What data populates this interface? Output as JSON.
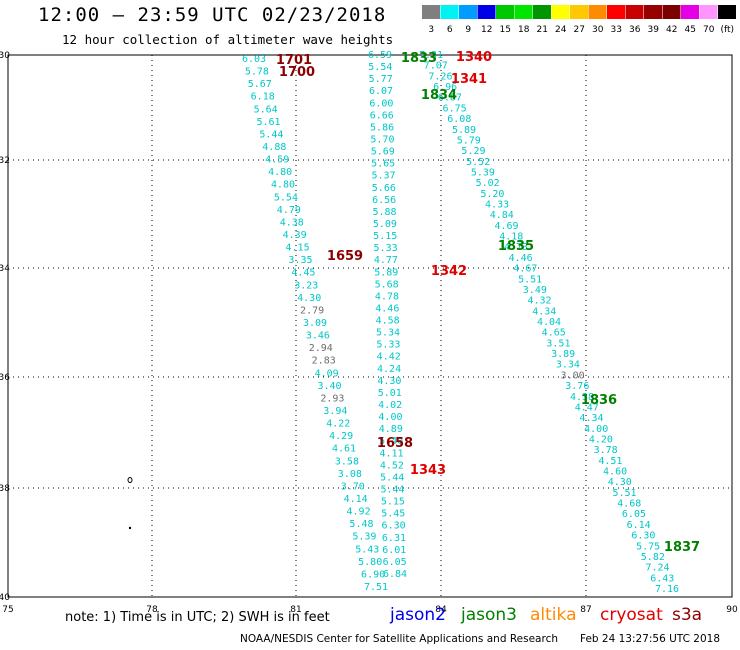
{
  "header": {
    "title": "12:00 — 23:59 UTC 02/23/2018",
    "subtitle": "12 hour collection of altimeter wave heights"
  },
  "colorbar": {
    "labels": [
      "3",
      "6",
      "9",
      "12",
      "15",
      "18",
      "21",
      "24",
      "27",
      "30",
      "33",
      "36",
      "39",
      "42",
      "45",
      "70",
      "(ft)"
    ],
    "colors": [
      "#7f7f7f",
      "#00f2f2",
      "#009cff",
      "#0000e6",
      "#00c800",
      "#00e600",
      "#009600",
      "#ffff00",
      "#ffc800",
      "#ff8c00",
      "#ff0000",
      "#c80000",
      "#960000",
      "#7d0000",
      "#e600e6",
      "#ff96ff",
      "#000000"
    ]
  },
  "axes": {
    "x_ticks": [
      "75",
      "78",
      "81",
      "84",
      "87",
      "90"
    ],
    "y_ticks": [
      "-30",
      "-32",
      "-34",
      "-36",
      "-38",
      "-40"
    ]
  },
  "tracks": [
    {
      "name": "track-a",
      "color": "#00c8c8",
      "values": [
        "6.03",
        "5.78",
        "5.67",
        "6.18",
        "5.64",
        "5.61",
        "5.44",
        "4.88",
        "4.59",
        "4.80",
        "4.80",
        "5.54",
        "4.79",
        "4.38",
        "4.39",
        "4.15",
        "3.35",
        "4.45",
        "3.23",
        "4.30",
        "2.79",
        "3.09",
        "3.46",
        "2.94",
        "2.83",
        "4.09",
        "3.40",
        "2.93",
        "3.94",
        "4.22",
        "4.29",
        "4.61",
        "3.58",
        "3.08",
        "3.70",
        "4.14",
        "4.92",
        "5.48",
        "5.39",
        "5.43",
        "5.80",
        "6.90",
        "7.51"
      ]
    },
    {
      "name": "track-b",
      "color": "#00c8c8",
      "values": [
        "6.59",
        "5.54",
        "5.77",
        "6.07",
        "6.00",
        "6.66",
        "5.86",
        "5.70",
        "5.69",
        "5.65",
        "5.37",
        "5.66",
        "6.56",
        "5.88",
        "5.09",
        "5.15",
        "5.33",
        "4.77",
        "5.89",
        "5.68",
        "4.78",
        "4.46",
        "4.58",
        "5.34",
        "5.33",
        "4.42",
        "4.24",
        "4.30",
        "5.01",
        "4.02",
        "4.00",
        "4.89",
        "5.40",
        "4.11",
        "4.52",
        "5.44",
        "5.44",
        "5.15",
        "5.45",
        "6.30",
        "6.31",
        "6.01",
        "6.05",
        "6.84"
      ]
    },
    {
      "name": "track-c",
      "color": "#00c8c8",
      "values": [
        "7.31",
        "7.07",
        "7.26",
        "6.96",
        "6.87",
        "6.75",
        "6.08",
        "5.89",
        "5.79",
        "5.29",
        "5.52",
        "5.39",
        "5.02",
        "5.20",
        "4.33",
        "4.84",
        "4.69",
        "4.18",
        "4.73",
        "4.46",
        "4.67",
        "5.51",
        "3.49",
        "4.32",
        "4.34",
        "4.04",
        "4.65",
        "3.51",
        "3.89",
        "3.34",
        "3.00",
        "3.76",
        "4.38",
        "4.47",
        "4.34",
        "4.00",
        "4.20",
        "3.78",
        "4.51",
        "4.60",
        "4.30",
        "5.51",
        "4.68",
        "6.05",
        "6.14",
        "6.30",
        "5.75",
        "5.82",
        "7.24",
        "6.43",
        "7.16"
      ]
    }
  ],
  "time_labels": [
    {
      "text": "1701",
      "color": "#8b0000"
    },
    {
      "text": "1700",
      "color": "#8b0000"
    },
    {
      "text": "1659",
      "color": "#8b0000"
    },
    {
      "text": "1658",
      "color": "#8b0000"
    },
    {
      "text": "1833",
      "color": "#008000"
    },
    {
      "text": "1834",
      "color": "#008000"
    },
    {
      "text": "1835",
      "color": "#008000"
    },
    {
      "text": "1836",
      "color": "#008000"
    },
    {
      "text": "1837",
      "color": "#008000"
    },
    {
      "text": "1340",
      "color": "#e00000"
    },
    {
      "text": "1341",
      "color": "#e00000"
    },
    {
      "text": "1342",
      "color": "#e00000"
    },
    {
      "text": "1343",
      "color": "#e00000"
    }
  ],
  "footer": {
    "note": "note:  1) Time is in UTC;  2) SWH is in feet",
    "satellites": [
      {
        "name": "jason2",
        "color": "#0000e6"
      },
      {
        "name": "jason3",
        "color": "#008000"
      },
      {
        "name": "altika",
        "color": "#ff8c00"
      },
      {
        "name": "cryosat",
        "color": "#e00000"
      },
      {
        "name": "s3a",
        "color": "#8b0000"
      }
    ],
    "credit": "NOAA/NESDIS Center for Satellite Applications and Research",
    "timestamp": "Feb 24 13:27:56 UTC 2018"
  }
}
